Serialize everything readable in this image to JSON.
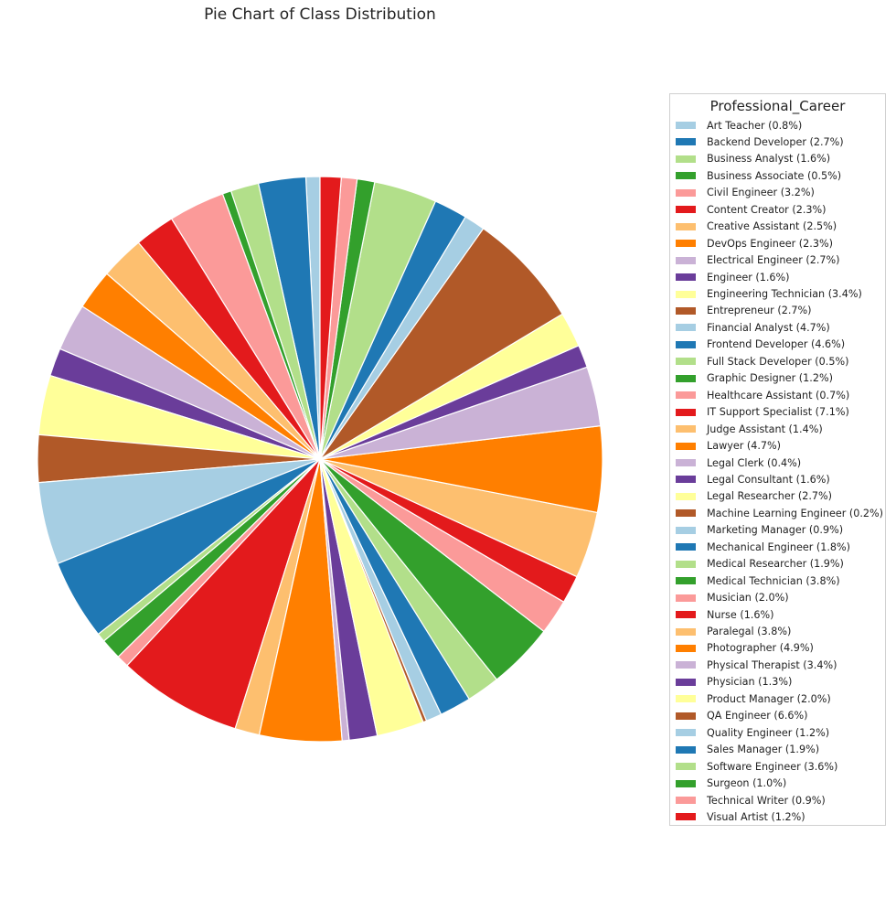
{
  "chart_data": {
    "type": "pie",
    "title": "Pie Chart of Class Distribution",
    "legend": {
      "title": "Professional_Career",
      "placement": "right"
    },
    "slices": [
      {
        "label": "Art Teacher",
        "pct": 0.8,
        "text": "Art Teacher (0.8%)"
      },
      {
        "label": "Backend Developer",
        "pct": 2.7,
        "text": "Backend Developer (2.7%)"
      },
      {
        "label": "Business Analyst",
        "pct": 1.6,
        "text": "Business Analyst (1.6%)"
      },
      {
        "label": "Business Associate",
        "pct": 0.5,
        "text": "Business Associate (0.5%)"
      },
      {
        "label": "Civil Engineer",
        "pct": 3.2,
        "text": "Civil Engineer (3.2%)"
      },
      {
        "label": "Content Creator",
        "pct": 2.3,
        "text": "Content Creator (2.3%)"
      },
      {
        "label": "Creative Assistant",
        "pct": 2.5,
        "text": "Creative Assistant (2.5%)"
      },
      {
        "label": "DevOps Engineer",
        "pct": 2.3,
        "text": "DevOps Engineer (2.3%)"
      },
      {
        "label": "Electrical Engineer",
        "pct": 2.7,
        "text": "Electrical Engineer (2.7%)"
      },
      {
        "label": "Engineer",
        "pct": 1.6,
        "text": "Engineer (1.6%)"
      },
      {
        "label": "Engineering Technician",
        "pct": 3.4,
        "text": "Engineering Technician (3.4%)"
      },
      {
        "label": "Entrepreneur",
        "pct": 2.7,
        "text": "Entrepreneur (2.7%)"
      },
      {
        "label": "Financial Analyst",
        "pct": 4.7,
        "text": "Financial Analyst (4.7%)"
      },
      {
        "label": "Frontend Developer",
        "pct": 4.6,
        "text": "Frontend Developer (4.6%)"
      },
      {
        "label": "Full Stack Developer",
        "pct": 0.5,
        "text": "Full Stack Developer (0.5%)"
      },
      {
        "label": "Graphic Designer",
        "pct": 1.2,
        "text": "Graphic Designer (1.2%)"
      },
      {
        "label": "Healthcare Assistant",
        "pct": 0.7,
        "text": "Healthcare Assistant (0.7%)"
      },
      {
        "label": "IT Support Specialist",
        "pct": 7.1,
        "text": "IT Support Specialist (7.1%)"
      },
      {
        "label": "Judge Assistant",
        "pct": 1.4,
        "text": "Judge Assistant (1.4%)"
      },
      {
        "label": "Lawyer",
        "pct": 4.7,
        "text": "Lawyer (4.7%)"
      },
      {
        "label": "Legal Clerk",
        "pct": 0.4,
        "text": "Legal Clerk (0.4%)"
      },
      {
        "label": "Legal Consultant",
        "pct": 1.6,
        "text": "Legal Consultant (1.6%)"
      },
      {
        "label": "Legal Researcher",
        "pct": 2.7,
        "text": "Legal Researcher (2.7%)"
      },
      {
        "label": "Machine Learning Engineer",
        "pct": 0.2,
        "text": "Machine Learning Engineer (0.2%)"
      },
      {
        "label": "Marketing Manager",
        "pct": 0.9,
        "text": "Marketing Manager (0.9%)"
      },
      {
        "label": "Mechanical Engineer",
        "pct": 1.8,
        "text": "Mechanical Engineer (1.8%)"
      },
      {
        "label": "Medical Researcher",
        "pct": 1.9,
        "text": "Medical Researcher (1.9%)"
      },
      {
        "label": "Medical Technician",
        "pct": 3.8,
        "text": "Medical Technician (3.8%)"
      },
      {
        "label": "Musician",
        "pct": 2.0,
        "text": "Musician (2.0%)"
      },
      {
        "label": "Nurse",
        "pct": 1.6,
        "text": "Nurse (1.6%)"
      },
      {
        "label": "Paralegal",
        "pct": 3.8,
        "text": "Paralegal (3.8%)"
      },
      {
        "label": "Photographer",
        "pct": 4.9,
        "text": "Photographer (4.9%)"
      },
      {
        "label": "Physical Therapist",
        "pct": 3.4,
        "text": "Physical Therapist (3.4%)"
      },
      {
        "label": "Physician",
        "pct": 1.3,
        "text": "Physician (1.3%)"
      },
      {
        "label": "Product Manager",
        "pct": 2.0,
        "text": "Product Manager (2.0%)"
      },
      {
        "label": "QA Engineer",
        "pct": 6.6,
        "text": "QA Engineer (6.6%)"
      },
      {
        "label": "Quality Engineer",
        "pct": 1.2,
        "text": "Quality Engineer (1.2%)"
      },
      {
        "label": "Sales Manager",
        "pct": 1.9,
        "text": "Sales Manager (1.9%)"
      },
      {
        "label": "Software Engineer",
        "pct": 3.6,
        "text": "Software Engineer (3.6%)"
      },
      {
        "label": "Surgeon",
        "pct": 1.0,
        "text": "Surgeon (1.0%)"
      },
      {
        "label": "Technical Writer",
        "pct": 0.9,
        "text": "Technical Writer (0.9%)"
      },
      {
        "label": "Visual Artist",
        "pct": 1.2,
        "text": "Visual Artist (1.2%)"
      }
    ],
    "palette": [
      "#a6cee3",
      "#1f78b4",
      "#b2df8a",
      "#33a02c",
      "#fb9a99",
      "#e31a1c",
      "#fdbf6f",
      "#ff7f00",
      "#cab2d6",
      "#6a3d9a",
      "#ffff99",
      "#b15928"
    ],
    "start_angle_deg": 90,
    "direction": "counterclockwise"
  }
}
